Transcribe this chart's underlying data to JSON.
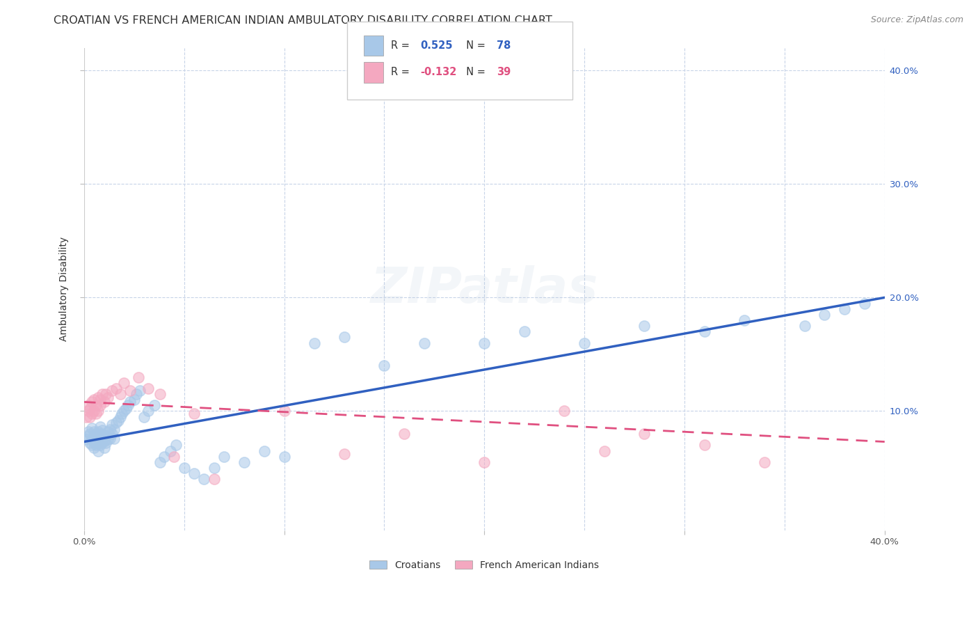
{
  "title": "CROATIAN VS FRENCH AMERICAN INDIAN AMBULATORY DISABILITY CORRELATION CHART",
  "source": "Source: ZipAtlas.com",
  "ylabel": "Ambulatory Disability",
  "xlabel": "",
  "xlim": [
    0.0,
    0.4
  ],
  "ylim": [
    -0.005,
    0.42
  ],
  "croatian_R": 0.525,
  "croatian_N": 78,
  "french_R": -0.132,
  "french_N": 39,
  "croatian_color": "#A8C8E8",
  "french_color": "#F4A8C0",
  "trendline_croatian_color": "#3060C0",
  "trendline_french_color": "#E05080",
  "watermark": "ZIPatlas",
  "background_color": "#FFFFFF",
  "grid_color": "#C8D4E8",
  "croatian_x": [
    0.001,
    0.002,
    0.002,
    0.003,
    0.003,
    0.004,
    0.004,
    0.004,
    0.005,
    0.005,
    0.005,
    0.006,
    0.006,
    0.006,
    0.007,
    0.007,
    0.007,
    0.007,
    0.008,
    0.008,
    0.008,
    0.008,
    0.009,
    0.009,
    0.009,
    0.01,
    0.01,
    0.01,
    0.011,
    0.011,
    0.012,
    0.012,
    0.013,
    0.013,
    0.014,
    0.014,
    0.015,
    0.015,
    0.016,
    0.017,
    0.018,
    0.019,
    0.02,
    0.021,
    0.022,
    0.023,
    0.025,
    0.026,
    0.028,
    0.03,
    0.032,
    0.035,
    0.038,
    0.04,
    0.043,
    0.046,
    0.05,
    0.055,
    0.06,
    0.065,
    0.07,
    0.08,
    0.09,
    0.1,
    0.115,
    0.13,
    0.15,
    0.17,
    0.2,
    0.22,
    0.25,
    0.28,
    0.31,
    0.33,
    0.36,
    0.37,
    0.38,
    0.39
  ],
  "croatian_y": [
    0.075,
    0.078,
    0.082,
    0.072,
    0.08,
    0.07,
    0.075,
    0.085,
    0.068,
    0.073,
    0.082,
    0.07,
    0.075,
    0.08,
    0.065,
    0.072,
    0.078,
    0.082,
    0.07,
    0.075,
    0.08,
    0.086,
    0.072,
    0.078,
    0.083,
    0.068,
    0.074,
    0.079,
    0.072,
    0.078,
    0.075,
    0.082,
    0.076,
    0.084,
    0.08,
    0.088,
    0.076,
    0.084,
    0.09,
    0.092,
    0.095,
    0.098,
    0.1,
    0.102,
    0.105,
    0.108,
    0.11,
    0.115,
    0.118,
    0.095,
    0.1,
    0.105,
    0.055,
    0.06,
    0.065,
    0.07,
    0.05,
    0.045,
    0.04,
    0.05,
    0.06,
    0.055,
    0.065,
    0.06,
    0.16,
    0.165,
    0.14,
    0.16,
    0.16,
    0.17,
    0.16,
    0.175,
    0.17,
    0.18,
    0.175,
    0.185,
    0.19,
    0.195
  ],
  "french_x": [
    0.001,
    0.002,
    0.002,
    0.003,
    0.003,
    0.004,
    0.004,
    0.005,
    0.005,
    0.006,
    0.006,
    0.007,
    0.007,
    0.008,
    0.008,
    0.009,
    0.01,
    0.011,
    0.012,
    0.014,
    0.016,
    0.018,
    0.02,
    0.023,
    0.027,
    0.032,
    0.038,
    0.045,
    0.055,
    0.065,
    0.1,
    0.13,
    0.16,
    0.2,
    0.24,
    0.26,
    0.28,
    0.31,
    0.34
  ],
  "french_y": [
    0.095,
    0.1,
    0.105,
    0.095,
    0.102,
    0.098,
    0.108,
    0.1,
    0.11,
    0.098,
    0.105,
    0.1,
    0.112,
    0.105,
    0.11,
    0.115,
    0.108,
    0.115,
    0.112,
    0.118,
    0.12,
    0.115,
    0.125,
    0.118,
    0.13,
    0.12,
    0.115,
    0.06,
    0.098,
    0.04,
    0.1,
    0.062,
    0.08,
    0.055,
    0.1,
    0.065,
    0.08,
    0.07,
    0.055
  ],
  "legend_entries": [
    "Croatians",
    "French American Indians"
  ],
  "title_fontsize": 11.5,
  "axis_label_fontsize": 10,
  "tick_fontsize": 9.5,
  "legend_fontsize": 10,
  "watermark_fontsize": 52,
  "watermark_alpha": 0.15,
  "trendline_croatian_x0": 0.0,
  "trendline_croatian_y0": 0.073,
  "trendline_croatian_x1": 0.4,
  "trendline_croatian_y1": 0.2,
  "trendline_french_x0": 0.0,
  "trendline_french_y0": 0.108,
  "trendline_french_x1": 0.4,
  "trendline_french_y1": 0.073,
  "ytick_positions": [
    0.1,
    0.2,
    0.3,
    0.4
  ],
  "ytick_labels": [
    "10.0%",
    "20.0%",
    "30.0%",
    "40.0%"
  ],
  "xtick_positions": [
    0.0,
    0.1,
    0.2,
    0.3,
    0.4
  ],
  "xtick_labels": [
    "0.0%",
    "",
    "",
    "",
    "40.0%"
  ]
}
